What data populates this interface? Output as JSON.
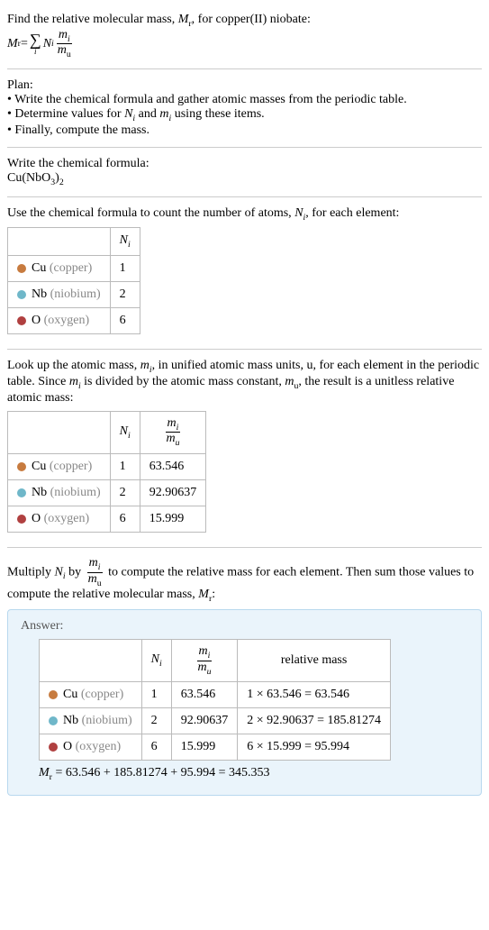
{
  "intro": {
    "line1_a": "Find the relative molecular mass, ",
    "line1_b": ", for copper(II) niobate:",
    "Mr": "M",
    "Mr_sub": "r",
    "eq": " = ",
    "sum_under": "i",
    "Ni": "N",
    "Ni_sub": "i",
    "mi": "m",
    "mi_sub": "i",
    "mu": "m",
    "mu_sub": "u"
  },
  "plan": {
    "title": "Plan:",
    "b1": "• Write the chemical formula and gather atomic masses from the periodic table.",
    "b2_a": "• Determine values for ",
    "b2_b": " and ",
    "b2_c": " using these items.",
    "b3": "• Finally, compute the mass."
  },
  "chem": {
    "title": "Write the chemical formula:",
    "formula_a": "Cu(NbO",
    "formula_b": "3",
    "formula_c": ")",
    "formula_d": "2"
  },
  "count": {
    "title_a": "Use the chemical formula to count the number of atoms, ",
    "title_b": ", for each element:",
    "header_Ni": "N",
    "header_Ni_sub": "i",
    "rows": [
      {
        "color": "#c77b3f",
        "sym": "Cu",
        "name": " (copper)",
        "n": "1"
      },
      {
        "color": "#6fb7c9",
        "sym": "Nb",
        "name": " (niobium)",
        "n": "2"
      },
      {
        "color": "#b04040",
        "sym": "O",
        "name": " (oxygen)",
        "n": "6"
      }
    ]
  },
  "lookup": {
    "p_a": "Look up the atomic mass, ",
    "p_b": ", in unified atomic mass units, u, for each element in the periodic table. Since ",
    "p_c": " is divided by the atomic mass constant, ",
    "p_d": ", the result is a unitless relative atomic mass:",
    "rows": [
      {
        "color": "#c77b3f",
        "sym": "Cu",
        "name": " (copper)",
        "n": "1",
        "m": "63.546"
      },
      {
        "color": "#6fb7c9",
        "sym": "Nb",
        "name": " (niobium)",
        "n": "2",
        "m": "92.90637"
      },
      {
        "color": "#b04040",
        "sym": "O",
        "name": " (oxygen)",
        "n": "6",
        "m": "15.999"
      }
    ]
  },
  "multiply": {
    "p_a": "Multiply ",
    "p_b": " by ",
    "p_c": " to compute the relative mass for each element. Then sum those values to compute the relative molecular mass, ",
    "p_d": ":"
  },
  "answer": {
    "label": "Answer:",
    "header_relmass": "relative mass",
    "rows": [
      {
        "color": "#c77b3f",
        "sym": "Cu",
        "name": " (copper)",
        "n": "1",
        "m": "63.546",
        "rel": "1 × 63.546 = 63.546"
      },
      {
        "color": "#6fb7c9",
        "sym": "Nb",
        "name": " (niobium)",
        "n": "2",
        "m": "92.90637",
        "rel": "2 × 92.90637 = 185.81274"
      },
      {
        "color": "#b04040",
        "sym": "O",
        "name": " (oxygen)",
        "n": "6",
        "m": "15.999",
        "rel": "6 × 15.999 = 95.994"
      }
    ],
    "final": " = 63.546 + 185.81274 + 95.994 = 345.353"
  }
}
